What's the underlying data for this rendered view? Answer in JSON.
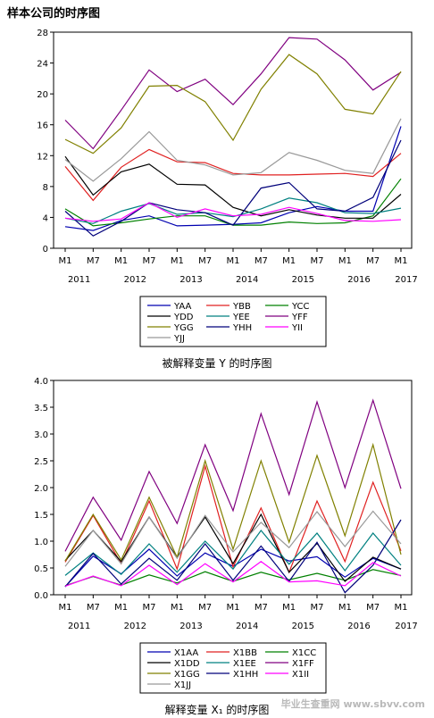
{
  "page_title": "样本公司的时序图",
  "watermark": "毕业生查重网 www.sbvv.com",
  "chart_data": [
    {
      "type": "line",
      "caption": "被解释变量 Y 的时序图",
      "ylim": [
        0,
        28
      ],
      "yticks": [
        "0",
        "4",
        "8",
        "12",
        "16",
        "20",
        "24",
        "28"
      ],
      "x_tick_labels": [
        "M1",
        "M7",
        "M1",
        "M7",
        "M1",
        "M7",
        "M1",
        "M7",
        "M1",
        "M7",
        "M1",
        "M7",
        "M1"
      ],
      "year_labels": [
        "2011",
        "2012",
        "2013",
        "2014",
        "2015",
        "2016",
        "2017"
      ],
      "grid": false,
      "legend_position": "bottom",
      "series": [
        {
          "name": "YAA",
          "color": "#0000b0",
          "values": [
            2.8,
            2.3,
            3.6,
            4.2,
            2.9,
            3.0,
            3.1,
            3.3,
            4.6,
            5.4,
            4.8,
            4.8,
            15.8
          ]
        },
        {
          "name": "YBB",
          "color": "#e02020",
          "values": [
            10.6,
            6.2,
            10.5,
            12.8,
            11.2,
            11.1,
            9.7,
            9.5,
            9.5,
            9.6,
            9.7,
            9.3,
            12.3
          ]
        },
        {
          "name": "YCC",
          "color": "#008000",
          "values": [
            5.1,
            2.9,
            3.3,
            3.8,
            4.2,
            4.2,
            3.0,
            3.0,
            3.4,
            3.2,
            3.3,
            4.2,
            9.0
          ]
        },
        {
          "name": "YDD",
          "color": "#000000",
          "values": [
            11.9,
            6.9,
            9.9,
            10.9,
            8.3,
            8.2,
            5.3,
            4.2,
            5.0,
            4.3,
            3.9,
            3.9,
            7.0
          ]
        },
        {
          "name": "YEE",
          "color": "#008080",
          "values": [
            3.9,
            3.2,
            4.8,
            5.8,
            4.4,
            4.6,
            4.1,
            5.1,
            6.5,
            5.9,
            4.6,
            4.5,
            5.2
          ]
        },
        {
          "name": "YFF",
          "color": "#800080",
          "values": [
            16.6,
            12.9,
            17.9,
            23.1,
            20.3,
            21.9,
            18.6,
            22.6,
            27.3,
            27.1,
            24.4,
            20.5,
            22.8
          ]
        },
        {
          "name": "YGG",
          "color": "#808000",
          "values": [
            14.1,
            12.3,
            15.6,
            21.0,
            21.1,
            19.0,
            14.0,
            20.6,
            25.1,
            22.6,
            18.0,
            17.4,
            22.9
          ]
        },
        {
          "name": "YHH",
          "color": "#00007a",
          "values": [
            4.8,
            1.6,
            3.5,
            5.9,
            5.0,
            4.6,
            3.0,
            7.8,
            8.5,
            5.1,
            4.8,
            6.6,
            14.0
          ]
        },
        {
          "name": "YII",
          "color": "#ff00ff",
          "values": [
            3.9,
            3.5,
            3.8,
            5.9,
            4.0,
            5.1,
            4.2,
            4.4,
            5.3,
            4.5,
            3.6,
            3.5,
            3.7
          ]
        },
        {
          "name": "YJJ",
          "color": "#999999",
          "values": [
            11.5,
            8.7,
            11.6,
            15.1,
            11.4,
            10.8,
            9.5,
            9.8,
            12.4,
            11.4,
            10.1,
            9.7,
            16.8
          ]
        }
      ]
    },
    {
      "type": "line",
      "caption": "解释变量 X₁ 的时序图",
      "ylim": [
        0,
        4
      ],
      "yticks": [
        "0.0",
        "0.5",
        "1.0",
        "1.5",
        "2.0",
        "2.5",
        "3.0",
        "3.5",
        "4.0"
      ],
      "x_tick_labels": [
        "M1",
        "M7",
        "M1",
        "M7",
        "M1",
        "M7",
        "M1",
        "M7",
        "M1",
        "M7",
        "M1",
        "M7",
        "M1"
      ],
      "year_labels": [
        "2011",
        "2012",
        "2013",
        "2014",
        "2015",
        "2016",
        "2017"
      ],
      "grid": false,
      "legend_position": "bottom",
      "series": [
        {
          "name": "X1AA",
          "color": "#0000b0",
          "values": [
            0.15,
            0.72,
            0.39,
            0.85,
            0.35,
            0.78,
            0.53,
            0.85,
            0.63,
            0.71,
            0.33,
            0.68,
            0.48
          ]
        },
        {
          "name": "X1BB",
          "color": "#e02020",
          "values": [
            0.61,
            1.48,
            0.58,
            1.75,
            0.48,
            2.4,
            0.52,
            1.62,
            0.42,
            1.75,
            0.62,
            2.1,
            0.82
          ]
        },
        {
          "name": "X1CC",
          "color": "#008000",
          "values": [
            0.17,
            0.34,
            0.18,
            0.37,
            0.22,
            0.43,
            0.25,
            0.42,
            0.28,
            0.4,
            0.27,
            0.47,
            0.36
          ]
        },
        {
          "name": "X1DD",
          "color": "#000000",
          "values": [
            0.64,
            1.2,
            0.62,
            1.45,
            0.7,
            1.45,
            0.58,
            1.5,
            0.42,
            0.96,
            0.25,
            0.7,
            0.48
          ]
        },
        {
          "name": "X1EE",
          "color": "#008080",
          "values": [
            0.36,
            0.78,
            0.38,
            0.95,
            0.42,
            1.0,
            0.48,
            1.2,
            0.57,
            1.15,
            0.45,
            1.15,
            0.55
          ]
        },
        {
          "name": "X1FF",
          "color": "#800080",
          "values": [
            0.81,
            1.82,
            1.02,
            2.3,
            1.33,
            2.8,
            1.57,
            3.38,
            1.87,
            3.6,
            2.0,
            3.63,
            1.98
          ]
        },
        {
          "name": "X1GG",
          "color": "#808000",
          "values": [
            0.63,
            1.5,
            0.65,
            1.82,
            0.7,
            2.5,
            0.85,
            2.5,
            0.98,
            2.6,
            1.1,
            2.8,
            0.75
          ]
        },
        {
          "name": "X1HH",
          "color": "#00007a",
          "values": [
            0.15,
            0.77,
            0.2,
            0.68,
            0.27,
            0.95,
            0.27,
            0.91,
            0.25,
            0.98,
            0.04,
            0.55,
            1.4
          ]
        },
        {
          "name": "X1II",
          "color": "#ff00ff",
          "values": [
            0.16,
            0.35,
            0.17,
            0.55,
            0.19,
            0.58,
            0.24,
            0.62,
            0.24,
            0.26,
            0.17,
            0.6,
            0.35
          ]
        },
        {
          "name": "X1JJ",
          "color": "#999999",
          "values": [
            0.53,
            1.2,
            0.58,
            1.45,
            0.68,
            1.48,
            0.8,
            1.35,
            0.88,
            1.55,
            0.9,
            1.56,
            0.95
          ]
        }
      ]
    }
  ]
}
